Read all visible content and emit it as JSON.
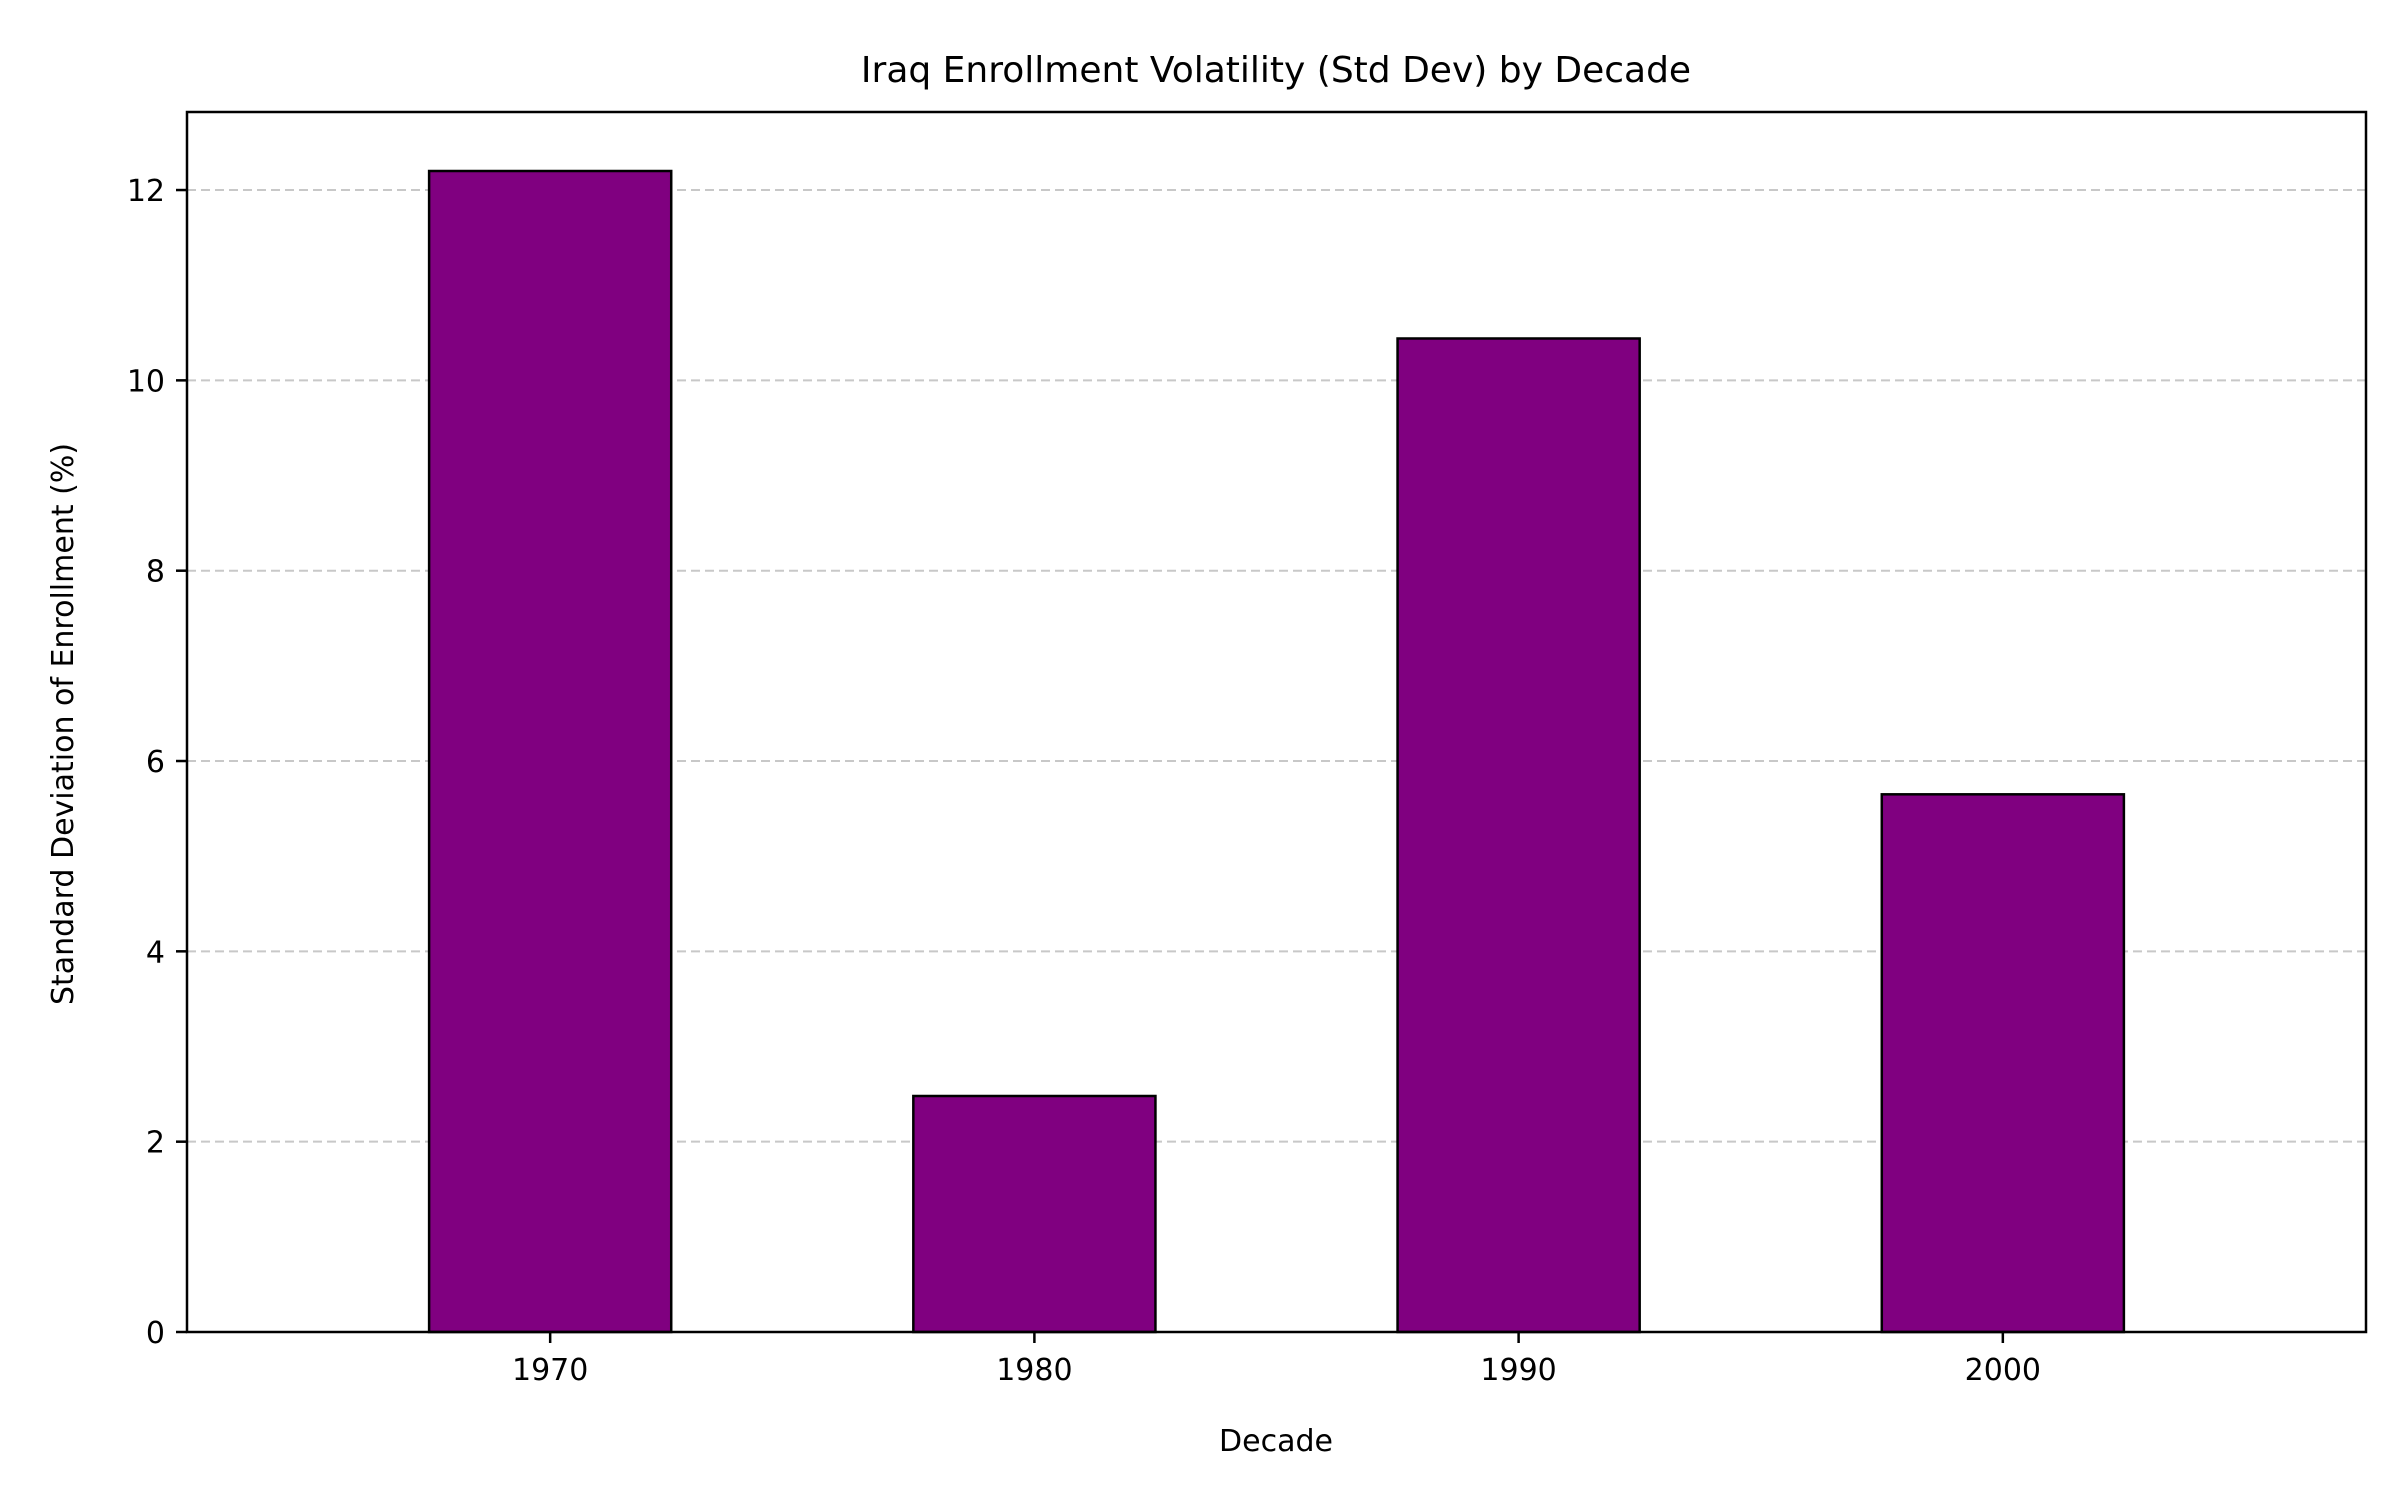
{
  "chart_data": {
    "type": "bar",
    "title": "Iraq Enrollment Volatility (Std Dev) by Decade",
    "xlabel": "Decade",
    "ylabel": "Standard Deviation of Enrollment (%)",
    "categories": [
      "1970",
      "1980",
      "1990",
      "2000"
    ],
    "values": [
      12.2,
      2.48,
      10.44,
      5.65
    ],
    "ylim": [
      0,
      12.82
    ],
    "yticks": [
      0,
      2,
      4,
      6,
      8,
      10,
      12
    ],
    "grid": "y-dashed",
    "legend": "none",
    "colors": {
      "bar_fill": "#800080",
      "bar_edge": "#000000",
      "grid": "#c8c8c8",
      "axes": "#000000"
    }
  }
}
